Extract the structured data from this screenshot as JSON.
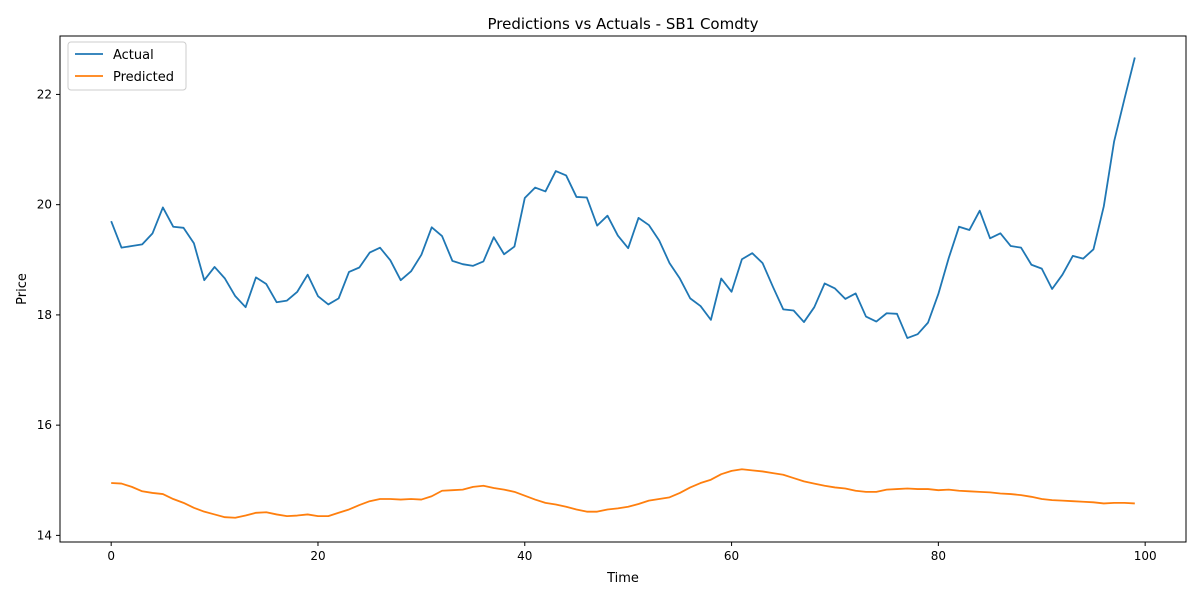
{
  "chart_data": {
    "type": "line",
    "title": "Predictions vs Actuals - SB1 Comdty",
    "xlabel": "Time",
    "ylabel": "Price",
    "xlim": [
      -4.95,
      103.95
    ],
    "ylim": [
      13.88,
      23.06
    ],
    "xticks": [
      0,
      20,
      40,
      60,
      80,
      100
    ],
    "yticks": [
      14,
      16,
      18,
      20,
      22
    ],
    "legend": "top-left",
    "grid": false,
    "series": [
      {
        "name": "Actual",
        "color": "#1f77b4",
        "values": [
          19.7,
          19.22,
          19.25,
          19.28,
          19.48,
          19.95,
          19.6,
          19.58,
          19.3,
          18.63,
          18.87,
          18.66,
          18.34,
          18.14,
          18.68,
          18.56,
          18.23,
          18.26,
          18.42,
          18.73,
          18.34,
          18.19,
          18.3,
          18.78,
          18.86,
          19.13,
          19.22,
          18.99,
          18.63,
          18.79,
          19.09,
          19.59,
          19.43,
          18.98,
          18.92,
          18.89,
          18.97,
          19.41,
          19.1,
          19.24,
          20.12,
          20.31,
          20.24,
          20.61,
          20.53,
          20.14,
          20.13,
          19.62,
          19.8,
          19.44,
          19.21,
          19.76,
          19.63,
          19.35,
          18.94,
          18.66,
          18.3,
          18.16,
          17.91,
          18.66,
          18.42,
          19.01,
          19.12,
          18.94,
          18.51,
          18.1,
          18.08,
          17.87,
          18.14,
          18.57,
          18.48,
          18.29,
          18.39,
          17.97,
          17.88,
          18.03,
          18.02,
          17.58,
          17.65,
          17.86,
          18.38,
          19.03,
          19.6,
          19.54,
          19.89,
          19.39,
          19.48,
          19.25,
          19.22,
          18.91,
          18.84,
          18.47,
          18.73,
          19.07,
          19.02,
          19.19,
          19.97,
          21.15,
          21.92,
          22.67
        ]
      },
      {
        "name": "Predicted",
        "color": "#ff7f0e",
        "values": [
          14.95,
          14.94,
          14.88,
          14.8,
          14.77,
          14.75,
          14.66,
          14.59,
          14.5,
          14.43,
          14.38,
          14.33,
          14.32,
          14.36,
          14.41,
          14.42,
          14.38,
          14.35,
          14.36,
          14.38,
          14.35,
          14.35,
          14.41,
          14.47,
          14.55,
          14.62,
          14.66,
          14.66,
          14.65,
          14.66,
          14.65,
          14.71,
          14.81,
          14.82,
          14.83,
          14.88,
          14.9,
          14.86,
          14.83,
          14.79,
          14.72,
          14.65,
          14.59,
          14.56,
          14.52,
          14.47,
          14.43,
          14.43,
          14.47,
          14.49,
          14.52,
          14.57,
          14.63,
          14.66,
          14.69,
          14.77,
          14.87,
          14.95,
          15.01,
          15.11,
          15.17,
          15.2,
          15.18,
          15.16,
          15.13,
          15.1,
          15.04,
          14.98,
          14.94,
          14.9,
          14.87,
          14.85,
          14.81,
          14.79,
          14.79,
          14.83,
          14.84,
          14.85,
          14.84,
          14.84,
          14.82,
          14.83,
          14.81,
          14.8,
          14.79,
          14.78,
          14.76,
          14.75,
          14.73,
          14.7,
          14.66,
          14.64,
          14.63,
          14.62,
          14.61,
          14.6,
          14.58,
          14.59,
          14.59,
          14.58
        ]
      }
    ]
  }
}
